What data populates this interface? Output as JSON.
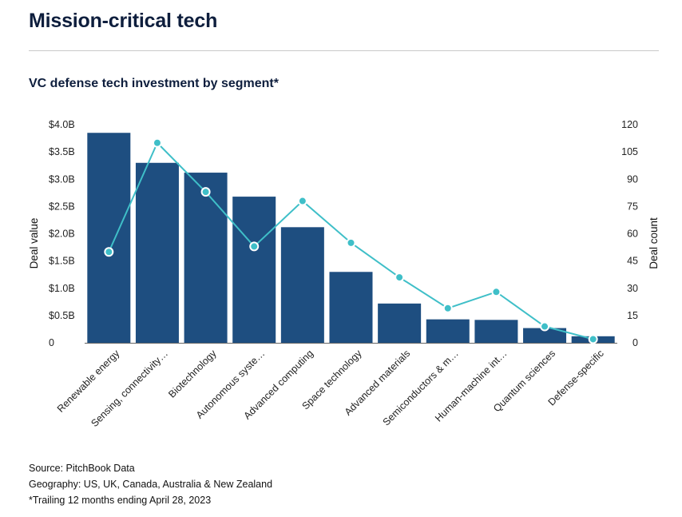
{
  "header": {
    "title": "Mission-critical tech",
    "subtitle": "VC defense tech investment by segment*"
  },
  "footer": {
    "source": "Source: PitchBook Data",
    "geography": "Geography: US, UK, Canada, Australia & New Zealand",
    "note": "*Trailing 12 months ending April 28, 2023"
  },
  "chart_data": {
    "type": "bar",
    "categories": [
      "Renewable energy",
      "Sensing, connectivity…",
      "Biotechnology",
      "Autonomous syste…",
      "Advanced computing",
      "Space technology",
      "Advanced materials",
      "Semiconductors & m…",
      "Human-machine int…",
      "Quantum sciences",
      "Defense-specific"
    ],
    "series": [
      {
        "name": "",
        "kind": "bar",
        "axis": "left",
        "color": "#1e4e80",
        "values": [
          3.85,
          3.3,
          3.12,
          2.68,
          2.12,
          1.3,
          0.72,
          0.43,
          0.42,
          0.27,
          0.12
        ]
      },
      {
        "name": "",
        "kind": "line",
        "axis": "right",
        "color": "#3fbfc8",
        "values": [
          50,
          110,
          83,
          53,
          78,
          55,
          36,
          19,
          28,
          9,
          2
        ]
      }
    ],
    "ylabel": "Deal value",
    "y2label": "Deal count",
    "ylim": [
      0,
      4.0
    ],
    "y2lim": [
      0,
      120
    ],
    "yticks": [
      "0",
      "$0.5B",
      "$1.0B",
      "$1.5B",
      "$2.0B",
      "$2.5B",
      "$3.0B",
      "$3.5B",
      "$4.0B"
    ],
    "y2ticks": [
      "0",
      "15",
      "30",
      "45",
      "60",
      "75",
      "90",
      "105",
      "120"
    ],
    "grid": false
  }
}
